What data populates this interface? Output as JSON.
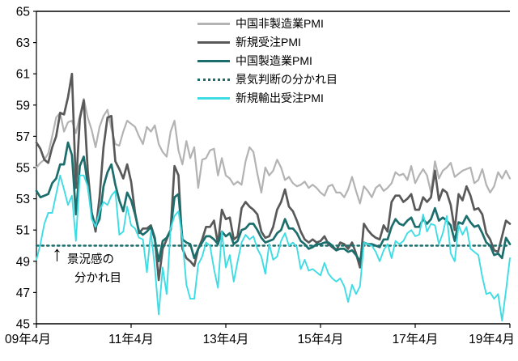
{
  "chart_data": {
    "type": "line",
    "title": "",
    "x_unit": "month",
    "x_start": "2009-04",
    "x_end": "2019-04",
    "x_tick_labels": [
      "09年4月",
      "11年4月",
      "13年4月",
      "15年4月",
      "17年4月",
      "19年4月"
    ],
    "x_tick_indices": [
      0,
      24,
      48,
      72,
      96,
      120
    ],
    "ylim": [
      45,
      65
    ],
    "y_ticks": [
      65,
      63,
      61,
      59,
      57,
      55,
      53,
      51,
      49,
      47,
      45
    ],
    "grid": false,
    "legend_position": "top-inside",
    "series": [
      {
        "name": "中国非製造業PMI",
        "color": "#b3b3b3",
        "style": "solid",
        "width": 2.2,
        "values": [
          55.0,
          55.3,
          55.5,
          55.9,
          57.0,
          58.2,
          58.5,
          57.3,
          57.9,
          58.0,
          57.2,
          58.3,
          59.4,
          58.2,
          57.4,
          56.3,
          57.6,
          58.3,
          58.7,
          57.5,
          56.5,
          56.4,
          57.3,
          58.0,
          57.8,
          57.6,
          57.0,
          56.5,
          57.6,
          57.3,
          57.7,
          56.5,
          56.0,
          55.7,
          57.3,
          58.0,
          56.1,
          55.2,
          56.7,
          55.6,
          56.3,
          53.7,
          55.5,
          55.6,
          56.1,
          56.2,
          54.5,
          55.6,
          54.5,
          54.3,
          53.9,
          54.1,
          53.9,
          55.4,
          56.3,
          56.0,
          54.6,
          53.4,
          55.0,
          54.5,
          54.8,
          55.5,
          55.0,
          54.2,
          54.4,
          54.0,
          53.8,
          53.9,
          54.1,
          53.7,
          53.9,
          53.7,
          53.4,
          53.2,
          53.8,
          53.9,
          53.4,
          53.4,
          53.1,
          53.6,
          54.4,
          53.5,
          52.7,
          53.8,
          53.5,
          53.1,
          53.7,
          53.9,
          53.5,
          53.7,
          54.0,
          54.7,
          54.5,
          54.6,
          54.2,
          55.1,
          54.0,
          54.5,
          54.9,
          54.5,
          53.4,
          55.4,
          54.3,
          54.8,
          55.0,
          55.3,
          54.4,
          54.6,
          54.8,
          54.9,
          55.0,
          54.0,
          54.2,
          54.9,
          53.9,
          53.4,
          53.8,
          54.7,
          54.3,
          54.8,
          54.3
        ]
      },
      {
        "name": "新規受注PMI",
        "color": "#595959",
        "style": "solid",
        "width": 2.7,
        "values": [
          56.6,
          56.2,
          55.5,
          55.3,
          56.3,
          57.0,
          58.5,
          58.4,
          59.5,
          61.0,
          53.7,
          58.1,
          59.3,
          54.8,
          52.1,
          50.9,
          53.1,
          56.3,
          58.2,
          58.3,
          55.4,
          54.9,
          54.3,
          55.2,
          54.1,
          52.1,
          50.8,
          51.1,
          51.1,
          51.3,
          50.5,
          47.8,
          49.8,
          50.4,
          51.0,
          55.1,
          54.5,
          49.8,
          49.2,
          49.0,
          48.7,
          49.8,
          50.4,
          51.2,
          51.2,
          51.6,
          50.1,
          52.3,
          51.7,
          51.8,
          50.4,
          50.6,
          52.4,
          52.8,
          52.5,
          52.3,
          52.0,
          50.9,
          50.5,
          50.6,
          51.2,
          52.3,
          52.8,
          53.6,
          52.5,
          52.2,
          51.6,
          50.9,
          50.4,
          50.2,
          50.4,
          50.2,
          50.3,
          50.6,
          50.1,
          49.9,
          49.7,
          50.2,
          50.1,
          49.8,
          50.2,
          49.5,
          48.6,
          51.4,
          51.0,
          50.7,
          50.5,
          50.4,
          51.3,
          50.9,
          52.8,
          53.2,
          53.2,
          52.8,
          53.0,
          53.3,
          52.3,
          52.3,
          53.1,
          52.8,
          53.1,
          54.8,
          52.9,
          53.6,
          53.4,
          52.6,
          51.0,
          53.3,
          52.9,
          53.8,
          53.2,
          52.3,
          52.4,
          52.0,
          50.8,
          50.4,
          49.7,
          49.6,
          50.6,
          51.6,
          51.4
        ]
      },
      {
        "name": "中国製造業PMI",
        "color": "#1c6e6c",
        "style": "solid",
        "width": 2.7,
        "values": [
          53.5,
          53.1,
          53.2,
          53.3,
          54.0,
          54.3,
          55.2,
          55.2,
          56.6,
          55.8,
          52.0,
          55.1,
          55.7,
          53.9,
          52.1,
          51.2,
          51.7,
          53.8,
          54.7,
          55.2,
          53.9,
          52.9,
          52.2,
          53.4,
          52.9,
          52.0,
          50.9,
          50.7,
          50.9,
          51.2,
          50.4,
          49.0,
          50.3,
          50.5,
          51.0,
          53.1,
          53.3,
          50.4,
          50.2,
          50.1,
          49.2,
          49.8,
          50.2,
          50.6,
          50.6,
          50.4,
          50.1,
          50.9,
          50.6,
          50.8,
          50.1,
          50.3,
          51.0,
          51.1,
          51.4,
          51.4,
          51.0,
          50.5,
          50.2,
          50.3,
          50.4,
          50.8,
          51.0,
          51.7,
          51.1,
          51.1,
          50.8,
          50.3,
          50.1,
          49.8,
          49.9,
          50.1,
          50.1,
          50.2,
          50.2,
          50.0,
          49.7,
          49.8,
          49.8,
          49.6,
          49.7,
          49.4,
          49.0,
          50.2,
          50.1,
          50.1,
          50.0,
          49.9,
          50.4,
          50.4,
          51.2,
          51.7,
          51.4,
          51.3,
          51.6,
          51.8,
          51.2,
          51.2,
          51.7,
          51.4,
          51.7,
          52.4,
          51.6,
          51.8,
          51.6,
          51.3,
          50.3,
          51.5,
          51.4,
          51.9,
          51.5,
          51.2,
          51.3,
          50.8,
          50.2,
          50.0,
          49.4,
          49.5,
          49.2,
          50.5,
          50.1
        ]
      },
      {
        "name": "景気判断の分かれ目",
        "color": "#1c6e6c",
        "style": "dotted",
        "width": 2.4,
        "constant": 50
      },
      {
        "name": "新規輸出受注PMI",
        "color": "#3fdce4",
        "style": "solid",
        "width": 1.9,
        "values": [
          49.1,
          50.1,
          51.4,
          52.1,
          52.1,
          53.3,
          54.5,
          53.6,
          52.6,
          53.2,
          50.3,
          54.5,
          54.5,
          53.8,
          51.7,
          51.2,
          52.2,
          52.8,
          52.6,
          53.2,
          53.5,
          50.7,
          50.9,
          52.5,
          51.3,
          51.1,
          50.5,
          50.4,
          48.3,
          50.9,
          48.6,
          45.6,
          48.6,
          46.9,
          51.1,
          51.9,
          52.2,
          50.4,
          47.5,
          46.6,
          46.6,
          48.8,
          49.3,
          50.2,
          50.0,
          48.5,
          47.3,
          50.9,
          48.6,
          49.4,
          47.7,
          49.0,
          50.2,
          50.7,
          50.4,
          50.6,
          49.8,
          49.3,
          48.2,
          50.1,
          49.1,
          49.3,
          50.3,
          50.8,
          50.0,
          50.2,
          49.9,
          48.5,
          49.1,
          48.4,
          48.5,
          48.3,
          48.1,
          48.9,
          48.2,
          47.9,
          47.7,
          47.9,
          47.4,
          46.4,
          47.5,
          46.9,
          47.4,
          50.2,
          50.1,
          50.0,
          49.6,
          49.0,
          49.7,
          50.1,
          49.2,
          50.3,
          50.1,
          50.3,
          50.8,
          51.0,
          50.6,
          50.7,
          52.0,
          50.9,
          51.4,
          51.3,
          50.1,
          50.8,
          51.9,
          49.5,
          49.0,
          51.3,
          50.7,
          51.2,
          49.8,
          49.6,
          49.4,
          48.0,
          46.9,
          47.0,
          46.6,
          46.9,
          45.2,
          47.1,
          49.2
        ]
      }
    ],
    "annotation": {
      "arrow": "↑",
      "lines": [
        "景況感の",
        "分かれ目"
      ]
    }
  }
}
